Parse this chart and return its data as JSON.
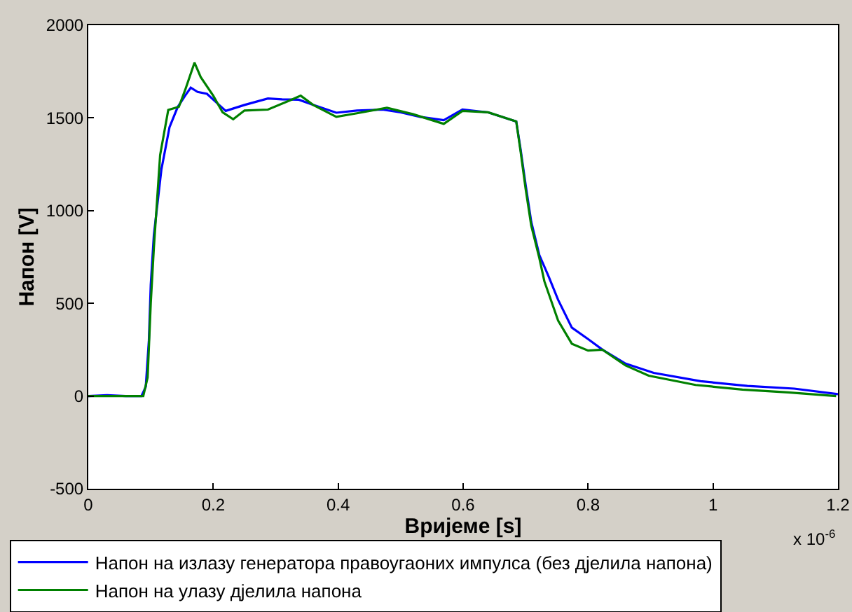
{
  "chart_data": {
    "type": "line",
    "xlabel": "Вријеме [s]",
    "ylabel": "Напон [V]",
    "xlim": [
      0,
      1.2
    ],
    "xticks": [
      0,
      0.2,
      0.4,
      0.6,
      0.8,
      1,
      1.2
    ],
    "ylim": [
      -500,
      2000
    ],
    "yticks": [
      -500,
      0,
      500,
      1000,
      1500,
      2000
    ],
    "legend": "bottom",
    "line_style": "solid",
    "marker": "none",
    "annotations": [
      "x 10$^{-6}$"
    ],
    "series": [
      {
        "name": "Напон на излазу генератора правоугаоних импулса (без дјелила напона)",
        "color": "#0000ff",
        "x": [
          0,
          0.03,
          0.06,
          0.085,
          0.092,
          0.097,
          0.1,
          0.105,
          0.117,
          0.13,
          0.143,
          0.155,
          0.164,
          0.175,
          0.19,
          0.21,
          0.22,
          0.25,
          0.2875,
          0.31,
          0.337,
          0.36,
          0.397,
          0.43,
          0.471,
          0.5,
          0.531,
          0.569,
          0.599,
          0.64,
          0.685,
          0.692,
          0.7,
          0.709,
          0.722,
          0.737,
          0.752,
          0.774,
          0.8,
          0.823,
          0.86,
          0.905,
          0.98,
          1.055,
          1.13,
          1.2
        ],
        "values": [
          0,
          5,
          0,
          0,
          50,
          300,
          600,
          869,
          1221,
          1450,
          1558,
          1620,
          1663,
          1640,
          1630,
          1568,
          1538,
          1570,
          1605,
          1600,
          1598,
          1570,
          1528,
          1540,
          1545,
          1530,
          1506,
          1488,
          1545,
          1530,
          1481,
          1330,
          1140,
          940,
          760,
          644,
          519,
          369,
          307,
          250,
          175,
          125,
          80,
          55,
          40,
          10
        ]
      },
      {
        "name": "Напон на улазу дјелила напона",
        "color": "#008000",
        "x": [
          0,
          0.03,
          0.06,
          0.088,
          0.095,
          0.1,
          0.105,
          0.115,
          0.128,
          0.145,
          0.155,
          0.17,
          0.18,
          0.2,
          0.215,
          0.232,
          0.25,
          0.2875,
          0.325,
          0.34,
          0.36,
          0.397,
          0.43,
          0.478,
          0.52,
          0.569,
          0.599,
          0.64,
          0.685,
          0.692,
          0.7,
          0.709,
          0.722,
          0.73,
          0.752,
          0.774,
          0.8,
          0.823,
          0.86,
          0.897,
          0.972,
          1.047,
          1.12,
          1.197
        ],
        "values": [
          0,
          0,
          0,
          0,
          100,
          500,
          800,
          1300,
          1543,
          1560,
          1650,
          1798,
          1720,
          1620,
          1530,
          1493,
          1540,
          1545,
          1598,
          1620,
          1570,
          1506,
          1525,
          1555,
          1520,
          1468,
          1538,
          1530,
          1481,
          1318,
          1118,
          919,
          744,
          619,
          407,
          282,
          245,
          250,
          165,
          110,
          60,
          35,
          20,
          0
        ]
      }
    ]
  }
}
